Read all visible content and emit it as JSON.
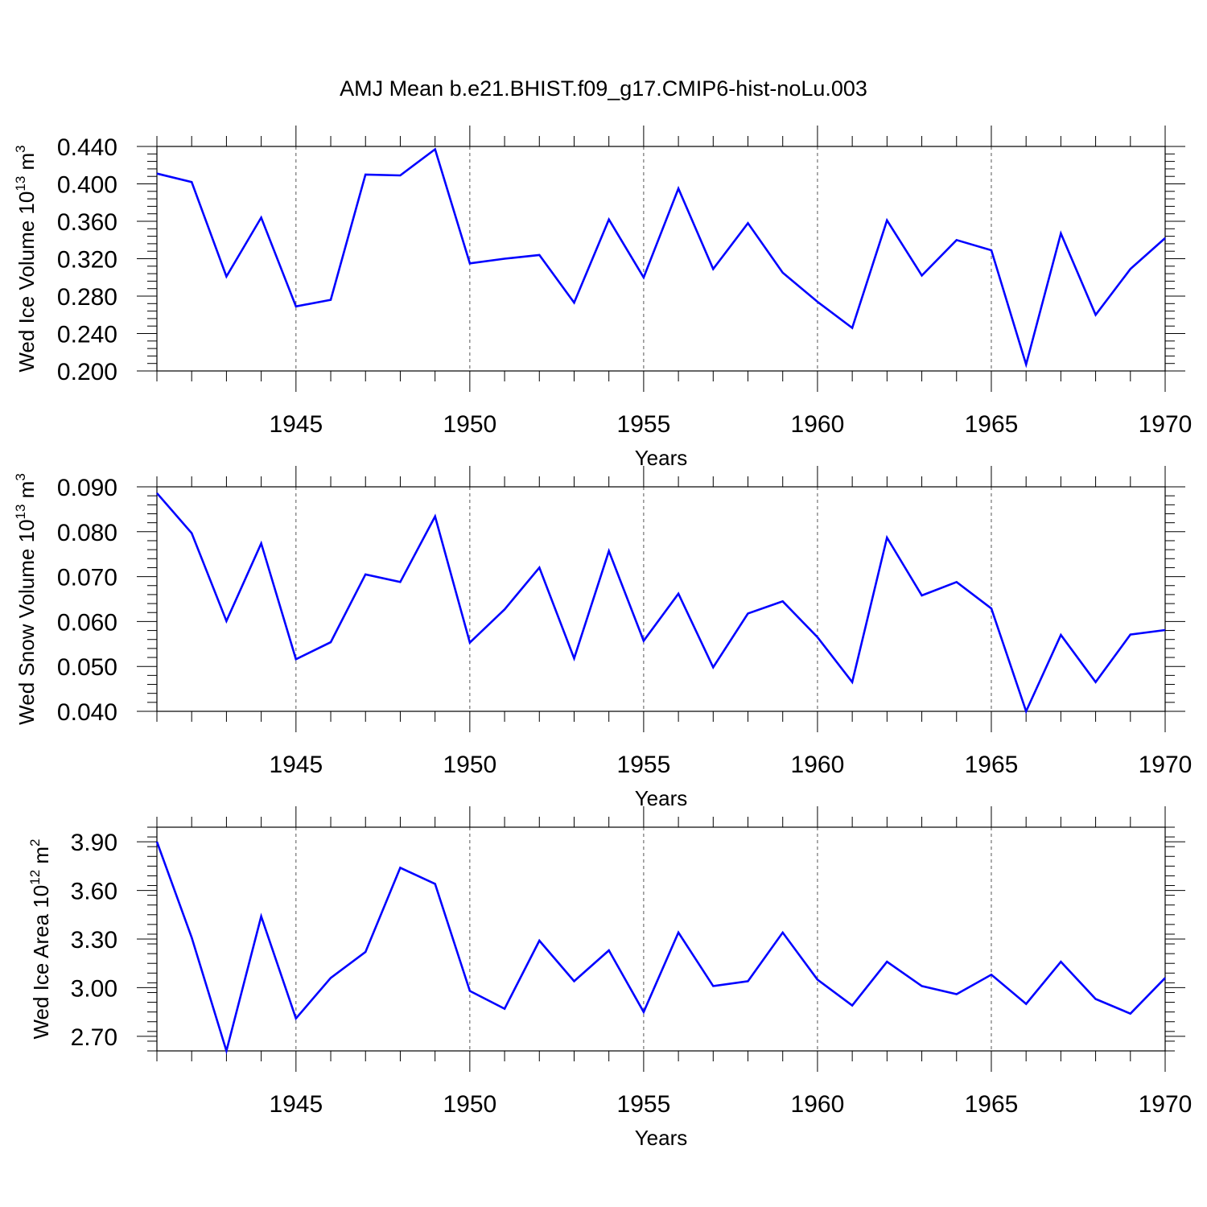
{
  "title": "AMJ Mean b.e21.BHIST.f09_g17.CMIP6-hist-noLu.003",
  "line_color": "#0000ff",
  "chart_data": [
    {
      "type": "line",
      "ylabel": "Wed Ice Volume 10",
      "ylabel_exp": "13",
      "ylabel_unit": " m",
      "ylabel_unit_exp": "3",
      "xlabel": "Years",
      "xlim": [
        1941,
        1970
      ],
      "ylim": [
        0.2,
        0.44
      ],
      "y_ticks": [
        "0.200",
        "0.240",
        "0.280",
        "0.320",
        "0.360",
        "0.400",
        "0.440"
      ],
      "y_tick_values": [
        0.2,
        0.24,
        0.28,
        0.32,
        0.36,
        0.4,
        0.44
      ],
      "x_ticks": [
        "1945",
        "1950",
        "1955",
        "1960",
        "1965",
        "1970"
      ],
      "x_tick_values": [
        1945,
        1950,
        1955,
        1960,
        1965,
        1970
      ],
      "grid": "vertical dashed at labeled years",
      "x": [
        1941,
        1942,
        1943,
        1944,
        1945,
        1946,
        1947,
        1948,
        1949,
        1950,
        1951,
        1952,
        1953,
        1954,
        1955,
        1956,
        1957,
        1958,
        1959,
        1960,
        1961,
        1962,
        1963,
        1964,
        1965,
        1966,
        1967,
        1968,
        1969,
        1970
      ],
      "y": [
        0.411,
        0.402,
        0.301,
        0.364,
        0.269,
        0.276,
        0.41,
        0.409,
        0.437,
        0.315,
        0.32,
        0.324,
        0.273,
        0.362,
        0.3,
        0.395,
        0.309,
        0.358,
        0.305,
        0.274,
        0.246,
        0.361,
        0.302,
        0.34,
        0.329,
        0.207,
        0.347,
        0.26,
        0.309,
        0.342
      ]
    },
    {
      "type": "line",
      "ylabel": "Wed Snow Volume 10",
      "ylabel_exp": "13",
      "ylabel_unit": " m",
      "ylabel_unit_exp": "3",
      "xlabel": "Years",
      "xlim": [
        1941,
        1970
      ],
      "ylim": [
        0.04,
        0.09
      ],
      "y_ticks": [
        "0.040",
        "0.050",
        "0.060",
        "0.070",
        "0.080",
        "0.090"
      ],
      "y_tick_values": [
        0.04,
        0.05,
        0.06,
        0.07,
        0.08,
        0.09
      ],
      "x_ticks": [
        "1945",
        "1950",
        "1955",
        "1960",
        "1965",
        "1970"
      ],
      "x_tick_values": [
        1945,
        1950,
        1955,
        1960,
        1965,
        1970
      ],
      "grid": "vertical dashed at labeled years",
      "x": [
        1941,
        1942,
        1943,
        1944,
        1945,
        1946,
        1947,
        1948,
        1949,
        1950,
        1951,
        1952,
        1953,
        1954,
        1955,
        1956,
        1957,
        1958,
        1959,
        1960,
        1961,
        1962,
        1963,
        1964,
        1965,
        1966,
        1967,
        1968,
        1969,
        1970
      ],
      "y": [
        0.0886,
        0.0797,
        0.0601,
        0.0774,
        0.0516,
        0.0554,
        0.0705,
        0.0688,
        0.0834,
        0.0553,
        0.0627,
        0.072,
        0.0518,
        0.0757,
        0.0557,
        0.0662,
        0.0498,
        0.0618,
        0.0645,
        0.0565,
        0.0465,
        0.0787,
        0.0658,
        0.0688,
        0.0629,
        0.04,
        0.057,
        0.0465,
        0.0571,
        0.0581
      ]
    },
    {
      "type": "line",
      "ylabel": "Wed Ice Area 10",
      "ylabel_exp": "12",
      "ylabel_unit": " m",
      "ylabel_unit_exp": "2",
      "xlabel": "Years",
      "xlim": [
        1941,
        1970
      ],
      "ylim": [
        2.61,
        3.99
      ],
      "y_ticks": [
        "2.70",
        "3.00",
        "3.30",
        "3.60",
        "3.90"
      ],
      "y_tick_values": [
        2.7,
        3.0,
        3.3,
        3.6,
        3.9
      ],
      "x_ticks": [
        "1945",
        "1950",
        "1955",
        "1960",
        "1965",
        "1970"
      ],
      "x_tick_values": [
        1945,
        1950,
        1955,
        1960,
        1965,
        1970
      ],
      "grid": "vertical dashed at labeled years",
      "x": [
        1941,
        1942,
        1943,
        1944,
        1945,
        1946,
        1947,
        1948,
        1949,
        1950,
        1951,
        1952,
        1953,
        1954,
        1955,
        1956,
        1957,
        1958,
        1959,
        1960,
        1961,
        1962,
        1963,
        1964,
        1965,
        1966,
        1967,
        1968,
        1969,
        1970
      ],
      "y": [
        3.9,
        3.31,
        2.61,
        3.44,
        2.81,
        3.06,
        3.22,
        3.74,
        3.64,
        2.98,
        2.87,
        3.29,
        3.04,
        3.23,
        2.85,
        3.34,
        3.01,
        3.04,
        3.34,
        3.05,
        2.89,
        3.16,
        3.01,
        2.96,
        3.08,
        2.9,
        3.16,
        2.93,
        2.84,
        3.06
      ]
    }
  ]
}
